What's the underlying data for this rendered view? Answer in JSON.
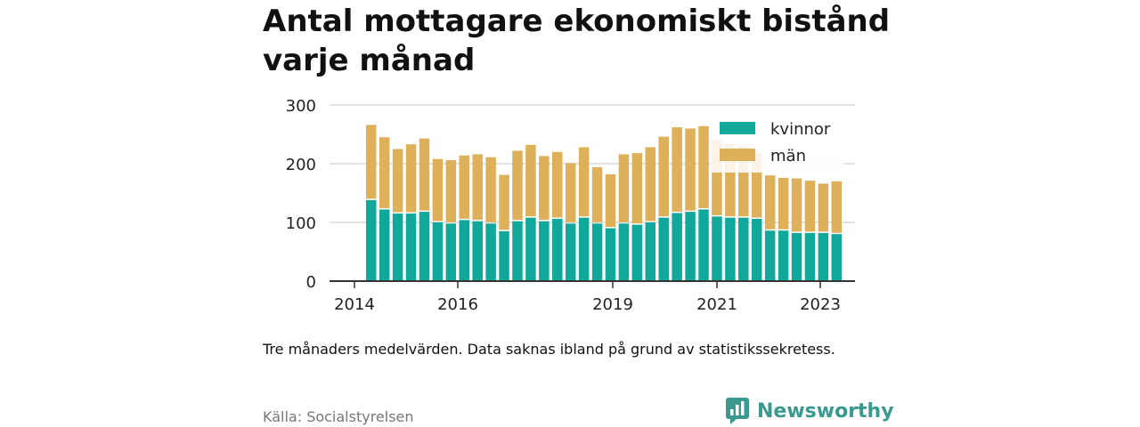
{
  "title": "Antal mottagare ekonomiskt bistånd varje månad",
  "note": "Tre månaders medelvärden. Data saknas ibland på grund av statistikssekretess.",
  "source": "Källa: Socialstyrelsen",
  "brand": "Newsworthy",
  "colors": {
    "kvinnor": "#0fa89a",
    "man": "#ddb059",
    "grid": "#d9d9d9",
    "axis": "#333333",
    "brand": "#3a9a8f"
  },
  "chart_data": {
    "type": "bar",
    "stacked": true,
    "ylim": [
      0,
      300
    ],
    "yticks": [
      0,
      100,
      200,
      300
    ],
    "xticks": [
      "2014",
      "2016",
      "2019",
      "2021",
      "2023"
    ],
    "legend_position": "top-right",
    "series": [
      {
        "name": "kvinnor",
        "values": [
          138,
          122,
          115,
          115,
          118,
          100,
          98,
          104,
          102,
          98,
          85,
          102,
          108,
          102,
          106,
          98,
          108,
          98,
          90,
          98,
          96,
          100,
          108,
          116,
          118,
          122,
          110,
          108,
          108,
          106,
          86,
          86,
          82,
          82,
          82,
          80
        ]
      },
      {
        "name": "män",
        "values": [
          128,
          123,
          110,
          118,
          125,
          108,
          108,
          110,
          114,
          113,
          96,
          120,
          124,
          111,
          114,
          103,
          120,
          96,
          92,
          118,
          122,
          128,
          138,
          146,
          142,
          142,
          130,
          126,
          122,
          112,
          94,
          90,
          93,
          89,
          84,
          90
        ]
      }
    ]
  }
}
